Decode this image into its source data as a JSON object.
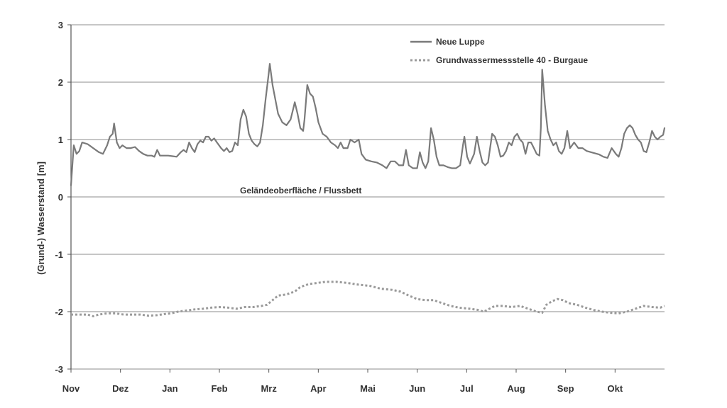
{
  "chart_data": {
    "type": "line",
    "ylabel": "(Grund-) Wasserstand [m]",
    "xlabel": "",
    "ylim": [
      -3,
      3
    ],
    "yticks": [
      3,
      2,
      1,
      0,
      -1,
      -2,
      -3
    ],
    "grid": "horizontal",
    "legend_position": "top-right",
    "annotation": "Geländeoberfläche / Flussbett",
    "months": [
      "Nov",
      "Dez",
      "Jan",
      "Feb",
      "Mrz",
      "Apr",
      "Mai",
      "Jun",
      "Jul",
      "Aug",
      "Sep",
      "Okt"
    ],
    "series": [
      {
        "name": "Neue Luppe",
        "style": "solid",
        "color": "#7a7a7a",
        "points": [
          [
            0,
            0.2
          ],
          [
            2,
            0.9
          ],
          [
            4,
            0.75
          ],
          [
            6,
            0.8
          ],
          [
            8,
            0.95
          ],
          [
            12,
            0.92
          ],
          [
            16,
            0.85
          ],
          [
            20,
            0.78
          ],
          [
            23,
            0.75
          ],
          [
            26,
            0.9
          ],
          [
            28,
            1.05
          ],
          [
            30,
            1.1
          ],
          [
            31,
            1.28
          ],
          [
            33,
            0.95
          ],
          [
            35,
            0.85
          ],
          [
            37,
            0.9
          ],
          [
            40,
            0.85
          ],
          [
            43,
            0.85
          ],
          [
            46,
            0.87
          ],
          [
            49,
            0.8
          ],
          [
            52,
            0.75
          ],
          [
            55,
            0.72
          ],
          [
            58,
            0.72
          ],
          [
            60,
            0.7
          ],
          [
            62,
            0.82
          ],
          [
            64,
            0.72
          ],
          [
            67,
            0.72
          ],
          [
            70,
            0.72
          ],
          [
            73,
            0.71
          ],
          [
            76,
            0.7
          ],
          [
            79,
            0.78
          ],
          [
            81,
            0.82
          ],
          [
            83,
            0.78
          ],
          [
            85,
            0.95
          ],
          [
            87,
            0.85
          ],
          [
            89,
            0.78
          ],
          [
            91,
            0.92
          ],
          [
            93,
            0.98
          ],
          [
            95,
            0.95
          ],
          [
            97,
            1.05
          ],
          [
            99,
            1.05
          ],
          [
            101,
            0.98
          ],
          [
            103,
            1.02
          ],
          [
            105,
            0.95
          ],
          [
            108,
            0.85
          ],
          [
            110,
            0.8
          ],
          [
            112,
            0.85
          ],
          [
            114,
            0.78
          ],
          [
            116,
            0.8
          ],
          [
            118,
            0.95
          ],
          [
            120,
            0.9
          ],
          [
            122,
            1.35
          ],
          [
            124,
            1.52
          ],
          [
            126,
            1.4
          ],
          [
            128,
            1.1
          ],
          [
            130,
            0.98
          ],
          [
            132,
            0.92
          ],
          [
            134,
            0.88
          ],
          [
            136,
            0.95
          ],
          [
            138,
            1.25
          ],
          [
            140,
            1.7
          ],
          [
            142,
            2.1
          ],
          [
            143,
            2.32
          ],
          [
            145,
            1.95
          ],
          [
            147,
            1.7
          ],
          [
            149,
            1.45
          ],
          [
            152,
            1.3
          ],
          [
            155,
            1.25
          ],
          [
            158,
            1.35
          ],
          [
            160,
            1.55
          ],
          [
            161,
            1.65
          ],
          [
            163,
            1.45
          ],
          [
            165,
            1.2
          ],
          [
            167,
            1.15
          ],
          [
            168,
            1.35
          ],
          [
            170,
            1.95
          ],
          [
            172,
            1.8
          ],
          [
            174,
            1.75
          ],
          [
            176,
            1.55
          ],
          [
            178,
            1.3
          ],
          [
            181,
            1.1
          ],
          [
            184,
            1.05
          ],
          [
            187,
            0.95
          ],
          [
            190,
            0.9
          ],
          [
            192,
            0.85
          ],
          [
            194,
            0.95
          ],
          [
            196,
            0.85
          ],
          [
            199,
            0.85
          ],
          [
            201,
            1.0
          ],
          [
            204,
            0.95
          ],
          [
            207,
            1.0
          ],
          [
            209,
            0.75
          ],
          [
            212,
            0.65
          ],
          [
            216,
            0.62
          ],
          [
            220,
            0.6
          ],
          [
            224,
            0.55
          ],
          [
            227,
            0.5
          ],
          [
            230,
            0.62
          ],
          [
            233,
            0.62
          ],
          [
            236,
            0.55
          ],
          [
            239,
            0.55
          ],
          [
            241,
            0.82
          ],
          [
            243,
            0.55
          ],
          [
            246,
            0.5
          ],
          [
            249,
            0.5
          ],
          [
            251,
            0.78
          ],
          [
            253,
            0.6
          ],
          [
            255,
            0.5
          ],
          [
            257,
            0.62
          ],
          [
            259,
            1.2
          ],
          [
            261,
            1.0
          ],
          [
            263,
            0.7
          ],
          [
            265,
            0.55
          ],
          [
            268,
            0.55
          ],
          [
            271,
            0.52
          ],
          [
            274,
            0.5
          ],
          [
            277,
            0.5
          ],
          [
            280,
            0.55
          ],
          [
            282,
            0.9
          ],
          [
            283,
            1.05
          ],
          [
            285,
            0.7
          ],
          [
            287,
            0.58
          ],
          [
            290,
            0.75
          ],
          [
            292,
            1.05
          ],
          [
            294,
            0.8
          ],
          [
            296,
            0.6
          ],
          [
            298,
            0.55
          ],
          [
            300,
            0.6
          ],
          [
            303,
            1.1
          ],
          [
            305,
            1.05
          ],
          [
            307,
            0.9
          ],
          [
            309,
            0.7
          ],
          [
            311,
            0.72
          ],
          [
            313,
            0.8
          ],
          [
            315,
            0.95
          ],
          [
            317,
            0.9
          ],
          [
            319,
            1.05
          ],
          [
            321,
            1.1
          ],
          [
            323,
            1.0
          ],
          [
            325,
            0.95
          ],
          [
            327,
            0.75
          ],
          [
            329,
            0.95
          ],
          [
            331,
            0.95
          ],
          [
            333,
            0.85
          ],
          [
            335,
            0.75
          ],
          [
            337,
            0.72
          ],
          [
            338,
            1.2
          ],
          [
            339,
            2.22
          ],
          [
            341,
            1.6
          ],
          [
            343,
            1.15
          ],
          [
            345,
            1.0
          ],
          [
            347,
            0.9
          ],
          [
            349,
            0.95
          ],
          [
            351,
            0.8
          ],
          [
            353,
            0.75
          ],
          [
            355,
            0.85
          ],
          [
            357,
            1.15
          ],
          [
            359,
            0.85
          ],
          [
            362,
            0.95
          ],
          [
            365,
            0.85
          ],
          [
            368,
            0.85
          ],
          [
            371,
            0.8
          ],
          [
            374,
            0.78
          ],
          [
            377,
            0.76
          ],
          [
            380,
            0.74
          ],
          [
            383,
            0.7
          ],
          [
            386,
            0.68
          ],
          [
            389,
            0.85
          ],
          [
            392,
            0.75
          ],
          [
            394,
            0.7
          ],
          [
            396,
            0.85
          ],
          [
            398,
            1.1
          ],
          [
            400,
            1.2
          ],
          [
            402,
            1.25
          ],
          [
            404,
            1.2
          ],
          [
            406,
            1.08
          ],
          [
            408,
            1.0
          ],
          [
            410,
            0.95
          ],
          [
            412,
            0.8
          ],
          [
            414,
            0.78
          ],
          [
            416,
            0.95
          ],
          [
            418,
            1.15
          ],
          [
            420,
            1.05
          ],
          [
            422,
            1.0
          ],
          [
            424,
            1.05
          ],
          [
            426,
            1.08
          ],
          [
            427,
            1.2
          ]
        ]
      },
      {
        "name": "Grundwassermessstelle 40 - Burgaue",
        "style": "dotted",
        "color": "#9a9a9a",
        "points": [
          [
            0,
            -2.05
          ],
          [
            6,
            -2.05
          ],
          [
            12,
            -2.05
          ],
          [
            16,
            -2.08
          ],
          [
            20,
            -2.05
          ],
          [
            26,
            -2.03
          ],
          [
            32,
            -2.03
          ],
          [
            38,
            -2.05
          ],
          [
            44,
            -2.05
          ],
          [
            50,
            -2.05
          ],
          [
            56,
            -2.07
          ],
          [
            62,
            -2.06
          ],
          [
            68,
            -2.04
          ],
          [
            72,
            -2.03
          ],
          [
            77,
            -2.0
          ],
          [
            83,
            -1.98
          ],
          [
            89,
            -1.96
          ],
          [
            95,
            -1.95
          ],
          [
            101,
            -1.93
          ],
          [
            107,
            -1.92
          ],
          [
            113,
            -1.93
          ],
          [
            119,
            -1.95
          ],
          [
            125,
            -1.92
          ],
          [
            131,
            -1.92
          ],
          [
            137,
            -1.9
          ],
          [
            141,
            -1.88
          ],
          [
            145,
            -1.8
          ],
          [
            149,
            -1.72
          ],
          [
            155,
            -1.7
          ],
          [
            161,
            -1.65
          ],
          [
            165,
            -1.57
          ],
          [
            171,
            -1.52
          ],
          [
            177,
            -1.5
          ],
          [
            183,
            -1.48
          ],
          [
            191,
            -1.48
          ],
          [
            199,
            -1.5
          ],
          [
            207,
            -1.53
          ],
          [
            215,
            -1.55
          ],
          [
            223,
            -1.6
          ],
          [
            231,
            -1.62
          ],
          [
            237,
            -1.65
          ],
          [
            243,
            -1.72
          ],
          [
            249,
            -1.78
          ],
          [
            255,
            -1.8
          ],
          [
            261,
            -1.8
          ],
          [
            267,
            -1.85
          ],
          [
            273,
            -1.9
          ],
          [
            279,
            -1.93
          ],
          [
            287,
            -1.95
          ],
          [
            293,
            -1.97
          ],
          [
            297,
            -2.0
          ],
          [
            301,
            -1.95
          ],
          [
            305,
            -1.9
          ],
          [
            311,
            -1.9
          ],
          [
            317,
            -1.92
          ],
          [
            323,
            -1.9
          ],
          [
            329,
            -1.95
          ],
          [
            335,
            -2.0
          ],
          [
            339,
            -2.02
          ],
          [
            342,
            -1.88
          ],
          [
            346,
            -1.82
          ],
          [
            350,
            -1.78
          ],
          [
            354,
            -1.8
          ],
          [
            358,
            -1.85
          ],
          [
            364,
            -1.88
          ],
          [
            370,
            -1.93
          ],
          [
            376,
            -1.97
          ],
          [
            382,
            -2.0
          ],
          [
            388,
            -2.02
          ],
          [
            394,
            -2.03
          ],
          [
            400,
            -2.0
          ],
          [
            406,
            -1.95
          ],
          [
            412,
            -1.9
          ],
          [
            418,
            -1.92
          ],
          [
            424,
            -1.93
          ],
          [
            427,
            -1.9
          ]
        ]
      }
    ]
  }
}
